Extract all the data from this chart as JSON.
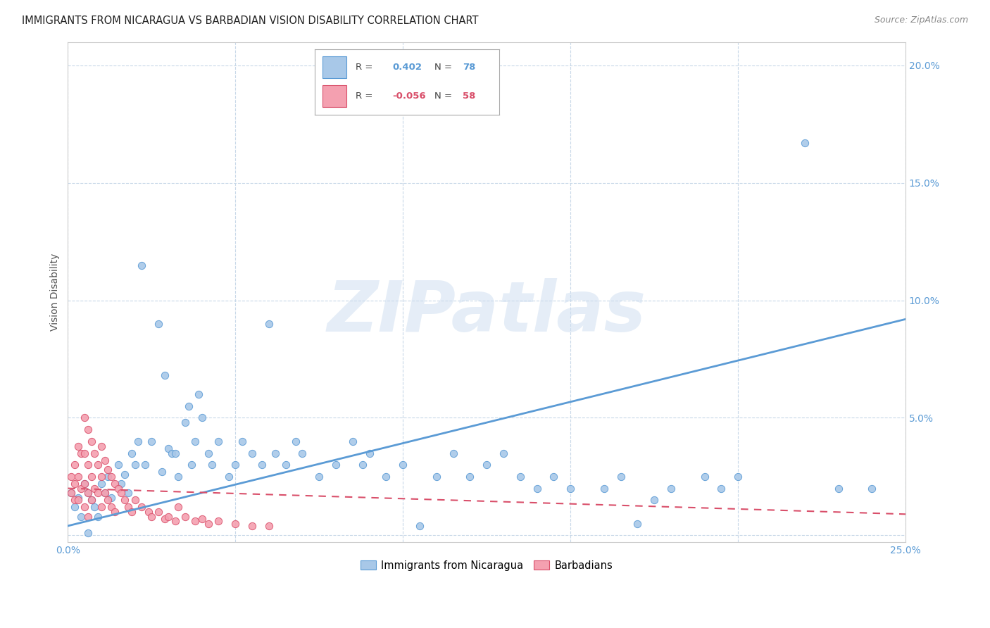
{
  "title": "IMMIGRANTS FROM NICARAGUA VS BARBADIAN VISION DISABILITY CORRELATION CHART",
  "source": "Source: ZipAtlas.com",
  "ylabel": "Vision Disability",
  "xlim": [
    0.0,
    0.25
  ],
  "ylim": [
    -0.003,
    0.21
  ],
  "yticks": [
    0.0,
    0.05,
    0.1,
    0.15,
    0.2
  ],
  "ytick_labels": [
    "",
    "5.0%",
    "10.0%",
    "15.0%",
    "20.0%"
  ],
  "xticks": [
    0.0,
    0.05,
    0.1,
    0.15,
    0.2,
    0.25
  ],
  "xtick_labels": [
    "0.0%",
    "",
    "",
    "",
    "",
    "25.0%"
  ],
  "blue_color": "#a8c8e8",
  "blue_dark": "#5b9bd5",
  "pink_color": "#f4a0b0",
  "pink_dark": "#d94f6a",
  "watermark": "ZIPatlas",
  "background_color": "#ffffff",
  "grid_color": "#c8d8e8",
  "legend_box_color": "#ffffff",
  "legend_border_color": "#aaaaaa",
  "blue_scatter": [
    [
      0.001,
      0.018
    ],
    [
      0.002,
      0.012
    ],
    [
      0.003,
      0.016
    ],
    [
      0.004,
      0.008
    ],
    [
      0.005,
      0.022
    ],
    [
      0.006,
      0.018
    ],
    [
      0.007,
      0.015
    ],
    [
      0.008,
      0.012
    ],
    [
      0.009,
      0.008
    ],
    [
      0.01,
      0.022
    ],
    [
      0.011,
      0.018
    ],
    [
      0.012,
      0.025
    ],
    [
      0.013,
      0.016
    ],
    [
      0.015,
      0.03
    ],
    [
      0.016,
      0.022
    ],
    [
      0.017,
      0.026
    ],
    [
      0.018,
      0.018
    ],
    [
      0.019,
      0.035
    ],
    [
      0.02,
      0.03
    ],
    [
      0.021,
      0.04
    ],
    [
      0.022,
      0.115
    ],
    [
      0.023,
      0.03
    ],
    [
      0.025,
      0.04
    ],
    [
      0.027,
      0.09
    ],
    [
      0.028,
      0.027
    ],
    [
      0.029,
      0.068
    ],
    [
      0.03,
      0.037
    ],
    [
      0.031,
      0.035
    ],
    [
      0.032,
      0.035
    ],
    [
      0.033,
      0.025
    ],
    [
      0.035,
      0.048
    ],
    [
      0.036,
      0.055
    ],
    [
      0.037,
      0.03
    ],
    [
      0.038,
      0.04
    ],
    [
      0.039,
      0.06
    ],
    [
      0.04,
      0.05
    ],
    [
      0.042,
      0.035
    ],
    [
      0.043,
      0.03
    ],
    [
      0.045,
      0.04
    ],
    [
      0.048,
      0.025
    ],
    [
      0.05,
      0.03
    ],
    [
      0.052,
      0.04
    ],
    [
      0.055,
      0.035
    ],
    [
      0.058,
      0.03
    ],
    [
      0.06,
      0.09
    ],
    [
      0.062,
      0.035
    ],
    [
      0.065,
      0.03
    ],
    [
      0.068,
      0.04
    ],
    [
      0.07,
      0.035
    ],
    [
      0.075,
      0.025
    ],
    [
      0.08,
      0.03
    ],
    [
      0.085,
      0.04
    ],
    [
      0.088,
      0.03
    ],
    [
      0.09,
      0.035
    ],
    [
      0.095,
      0.025
    ],
    [
      0.1,
      0.03
    ],
    [
      0.105,
      0.004
    ],
    [
      0.11,
      0.025
    ],
    [
      0.115,
      0.035
    ],
    [
      0.12,
      0.025
    ],
    [
      0.125,
      0.03
    ],
    [
      0.13,
      0.035
    ],
    [
      0.135,
      0.025
    ],
    [
      0.14,
      0.02
    ],
    [
      0.145,
      0.025
    ],
    [
      0.15,
      0.02
    ],
    [
      0.16,
      0.02
    ],
    [
      0.165,
      0.025
    ],
    [
      0.17,
      0.005
    ],
    [
      0.175,
      0.015
    ],
    [
      0.18,
      0.02
    ],
    [
      0.19,
      0.025
    ],
    [
      0.195,
      0.02
    ],
    [
      0.2,
      0.025
    ],
    [
      0.22,
      0.167
    ],
    [
      0.23,
      0.02
    ],
    [
      0.24,
      0.02
    ],
    [
      0.006,
      0.001
    ]
  ],
  "pink_scatter": [
    [
      0.001,
      0.025
    ],
    [
      0.001,
      0.018
    ],
    [
      0.002,
      0.03
    ],
    [
      0.002,
      0.022
    ],
    [
      0.002,
      0.015
    ],
    [
      0.003,
      0.038
    ],
    [
      0.003,
      0.025
    ],
    [
      0.003,
      0.015
    ],
    [
      0.004,
      0.035
    ],
    [
      0.004,
      0.02
    ],
    [
      0.005,
      0.05
    ],
    [
      0.005,
      0.035
    ],
    [
      0.005,
      0.022
    ],
    [
      0.005,
      0.012
    ],
    [
      0.006,
      0.045
    ],
    [
      0.006,
      0.03
    ],
    [
      0.006,
      0.018
    ],
    [
      0.006,
      0.008
    ],
    [
      0.007,
      0.04
    ],
    [
      0.007,
      0.025
    ],
    [
      0.007,
      0.015
    ],
    [
      0.008,
      0.035
    ],
    [
      0.008,
      0.02
    ],
    [
      0.009,
      0.03
    ],
    [
      0.009,
      0.018
    ],
    [
      0.01,
      0.038
    ],
    [
      0.01,
      0.025
    ],
    [
      0.01,
      0.012
    ],
    [
      0.011,
      0.032
    ],
    [
      0.011,
      0.018
    ],
    [
      0.012,
      0.028
    ],
    [
      0.012,
      0.015
    ],
    [
      0.013,
      0.025
    ],
    [
      0.013,
      0.012
    ],
    [
      0.014,
      0.022
    ],
    [
      0.014,
      0.01
    ],
    [
      0.015,
      0.02
    ],
    [
      0.016,
      0.018
    ],
    [
      0.017,
      0.015
    ],
    [
      0.018,
      0.012
    ],
    [
      0.019,
      0.01
    ],
    [
      0.02,
      0.015
    ],
    [
      0.022,
      0.012
    ],
    [
      0.024,
      0.01
    ],
    [
      0.025,
      0.008
    ],
    [
      0.027,
      0.01
    ],
    [
      0.029,
      0.007
    ],
    [
      0.03,
      0.008
    ],
    [
      0.032,
      0.006
    ],
    [
      0.033,
      0.012
    ],
    [
      0.035,
      0.008
    ],
    [
      0.038,
      0.006
    ],
    [
      0.04,
      0.007
    ],
    [
      0.042,
      0.005
    ],
    [
      0.045,
      0.006
    ],
    [
      0.05,
      0.005
    ],
    [
      0.055,
      0.004
    ],
    [
      0.06,
      0.004
    ]
  ],
  "blue_line_x": [
    0.0,
    0.25
  ],
  "blue_line_y": [
    0.004,
    0.092
  ],
  "pink_line_x": [
    0.0,
    0.25
  ],
  "pink_line_y": [
    0.02,
    0.009
  ]
}
